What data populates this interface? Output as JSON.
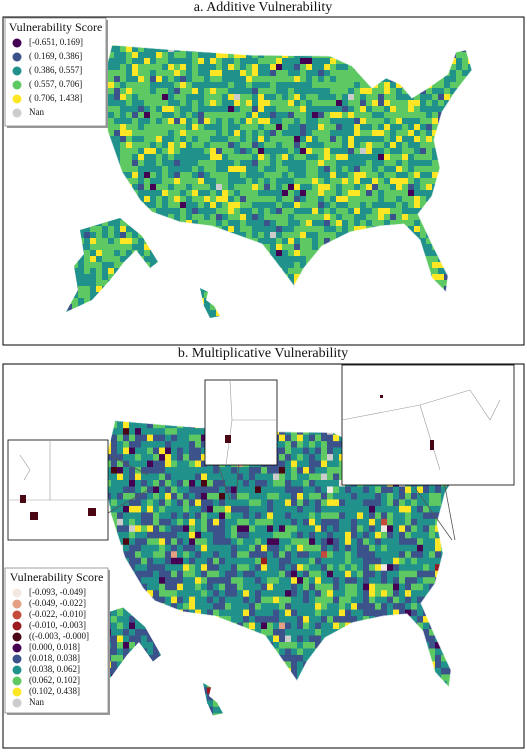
{
  "panels": [
    {
      "title": "a. Additive Vulnerability",
      "legend": {
        "title": "Vulnerability Score",
        "items": [
          {
            "label": "[-0.651, 0.169]",
            "color": "#440154"
          },
          {
            "label": "( 0.169, 0.386]",
            "color": "#3b528b"
          },
          {
            "label": "( 0.386, 0.557]",
            "color": "#21918c"
          },
          {
            "label": "( 0.557, 0.706]",
            "color": "#5ec962"
          },
          {
            "label": "( 0.706, 1.438]",
            "color": "#fde725"
          },
          {
            "label": "Nan",
            "color": "#cccccc"
          }
        ]
      }
    },
    {
      "title": "b. Multiplicative Vulnerability",
      "legend": {
        "title": "Vulnerability Score",
        "items": [
          {
            "label": "[-0.093, -0.049]",
            "color": "#f2e8e2"
          },
          {
            "label": "(-0.049, -0.022]",
            "color": "#e3a085"
          },
          {
            "label": "(-0.022, -0.010]",
            "color": "#c44b3c"
          },
          {
            "label": "(-0.010, -0.003]",
            "color": "#9a1a1e"
          },
          {
            "label": "((-0.003, -0.000]",
            "color": "#4a0612"
          },
          {
            "label": "[0.000, 0.018]",
            "color": "#440154"
          },
          {
            "label": "(0.018, 0.038]",
            "color": "#3b528b"
          },
          {
            "label": "(0.038, 0.062]",
            "color": "#21918c"
          },
          {
            "label": "(0.062, 0.102]",
            "color": "#5ec962"
          },
          {
            "label": "(0.102, 0.438]",
            "color": "#fde725"
          },
          {
            "label": "Nan",
            "color": "#cccccc"
          }
        ]
      }
    }
  ]
}
